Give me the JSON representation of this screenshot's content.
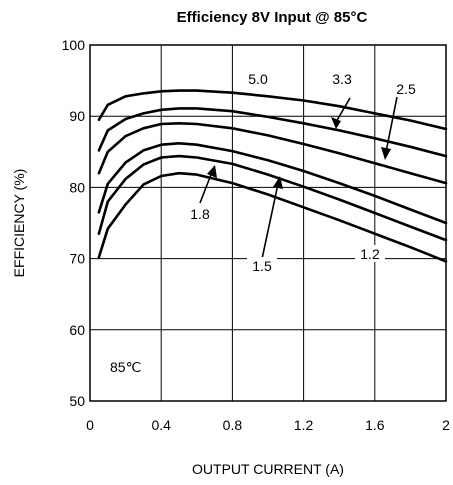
{
  "chart_data": {
    "type": "line",
    "title": "Efficiency 8V Input @ 85°C",
    "xlabel": "OUTPUT CURRENT (A)",
    "ylabel": "EFFICIENCY (%)",
    "xlim": [
      0,
      2
    ],
    "ylim": [
      50,
      100
    ],
    "x_ticks": [
      "0",
      "0.4",
      "0.8",
      "1.2",
      "1.6",
      "2"
    ],
    "y_ticks": [
      "50",
      "60",
      "70",
      "80",
      "90",
      "100"
    ],
    "grid": true,
    "annotation": "85℃",
    "series": [
      {
        "name": "5.0",
        "x": [
          0.05,
          0.1,
          0.2,
          0.3,
          0.4,
          0.5,
          0.6,
          0.8,
          1.0,
          1.2,
          1.4,
          1.6,
          1.8,
          2.0
        ],
        "y": [
          89.5,
          91.6,
          92.8,
          93.2,
          93.5,
          93.6,
          93.6,
          93.3,
          92.8,
          92.2,
          91.4,
          90.4,
          89.4,
          88.2
        ]
      },
      {
        "name": "3.3",
        "x": [
          0.05,
          0.1,
          0.2,
          0.3,
          0.4,
          0.5,
          0.6,
          0.8,
          1.0,
          1.2,
          1.4,
          1.6,
          1.8,
          2.0
        ],
        "y": [
          85.2,
          88.0,
          89.6,
          90.4,
          90.9,
          91.1,
          91.1,
          90.7,
          89.9,
          89.0,
          88.0,
          86.9,
          85.7,
          84.4
        ]
      },
      {
        "name": "2.5",
        "x": [
          0.05,
          0.1,
          0.2,
          0.3,
          0.4,
          0.5,
          0.6,
          0.8,
          1.0,
          1.2,
          1.4,
          1.6,
          1.8,
          2.0
        ],
        "y": [
          82.0,
          85.0,
          87.2,
          88.3,
          88.9,
          89.0,
          88.9,
          88.3,
          87.3,
          86.1,
          84.8,
          83.4,
          82.0,
          80.6
        ]
      },
      {
        "name": "1.8",
        "x": [
          0.05,
          0.1,
          0.2,
          0.3,
          0.4,
          0.5,
          0.6,
          0.8,
          1.0,
          1.2,
          1.4,
          1.6,
          1.8,
          2.0
        ],
        "y": [
          76.5,
          80.5,
          83.5,
          85.2,
          86.0,
          86.2,
          86.0,
          85.1,
          83.8,
          82.3,
          80.6,
          78.8,
          76.9,
          75.0
        ]
      },
      {
        "name": "1.5",
        "x": [
          0.05,
          0.1,
          0.2,
          0.3,
          0.4,
          0.5,
          0.6,
          0.8,
          1.0,
          1.2,
          1.4,
          1.6,
          1.8,
          2.0
        ],
        "y": [
          73.5,
          78.0,
          81.2,
          83.2,
          84.2,
          84.4,
          84.2,
          83.3,
          81.8,
          80.1,
          78.3,
          76.4,
          74.5,
          72.6
        ]
      },
      {
        "name": "1.2",
        "x": [
          0.05,
          0.1,
          0.2,
          0.3,
          0.4,
          0.5,
          0.6,
          0.8,
          1.0,
          1.2,
          1.4,
          1.6,
          1.8,
          2.0
        ],
        "y": [
          70.2,
          74.2,
          77.6,
          80.4,
          81.6,
          82.0,
          81.8,
          80.6,
          79.0,
          77.2,
          75.4,
          73.5,
          71.6,
          69.6
        ]
      }
    ]
  }
}
